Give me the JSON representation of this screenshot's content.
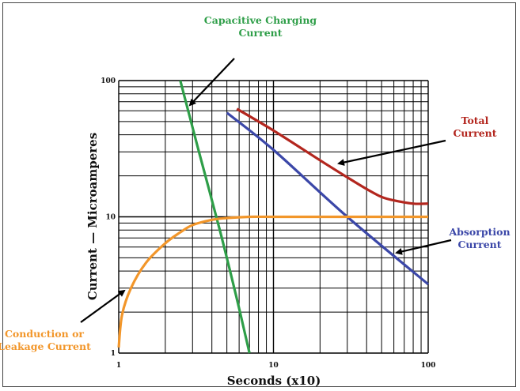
{
  "chart_data": {
    "type": "line",
    "x_scale": "log",
    "y_scale": "log",
    "xlim": [
      1,
      100
    ],
    "ylim": [
      1,
      100
    ],
    "xlabel": "Seconds (x10)",
    "ylabel": "Current — Microamperes",
    "x_ticks": [
      "1",
      "10",
      "100"
    ],
    "y_ticks": [
      "1",
      "10",
      "100"
    ],
    "grid": true,
    "series": [
      {
        "name": "Capacitive Charging Current",
        "color": "#2e9e48",
        "x": [
          2.5,
          3.3,
          4.5,
          5.8,
          7.0
        ],
        "y": [
          100,
          30,
          8,
          2.5,
          1
        ]
      },
      {
        "name": "Total Current",
        "color": "#b3261e",
        "x": [
          5.8,
          10,
          20,
          30,
          40,
          50,
          60,
          80,
          100
        ],
        "y": [
          62,
          43,
          26,
          19.5,
          16,
          14,
          13.2,
          12.5,
          12.5
        ]
      },
      {
        "name": "Absorption Current",
        "color": "#3b47a8",
        "x": [
          5.0,
          10,
          30,
          100
        ],
        "y": [
          58,
          31,
          10,
          3.2
        ]
      },
      {
        "name": "Conduction or Leakage Current",
        "color": "#f2962a",
        "x": [
          1.0,
          1.05,
          1.2,
          1.5,
          2.0,
          2.5,
          3.0,
          4.0,
          5.0,
          7.0,
          10,
          30,
          100
        ],
        "y": [
          1.1,
          1.9,
          3.0,
          4.6,
          6.4,
          7.7,
          8.7,
          9.5,
          9.8,
          10,
          10,
          10,
          10
        ]
      }
    ],
    "annotations": [
      {
        "lines": [
          "Capacitive Charging",
          "Current"
        ],
        "color": "#2e9e48",
        "points_to": "Capacitive Charging Current"
      },
      {
        "lines": [
          "Total",
          "Current"
        ],
        "color": "#b3261e",
        "points_to": "Total Current"
      },
      {
        "lines": [
          "Absorption",
          "Current"
        ],
        "color": "#3b47a8",
        "points_to": "Absorption Current"
      },
      {
        "lines": [
          "Conduction or",
          "Leakage Current"
        ],
        "color": "#f2962a",
        "points_to": "Conduction or Leakage Current"
      }
    ]
  }
}
